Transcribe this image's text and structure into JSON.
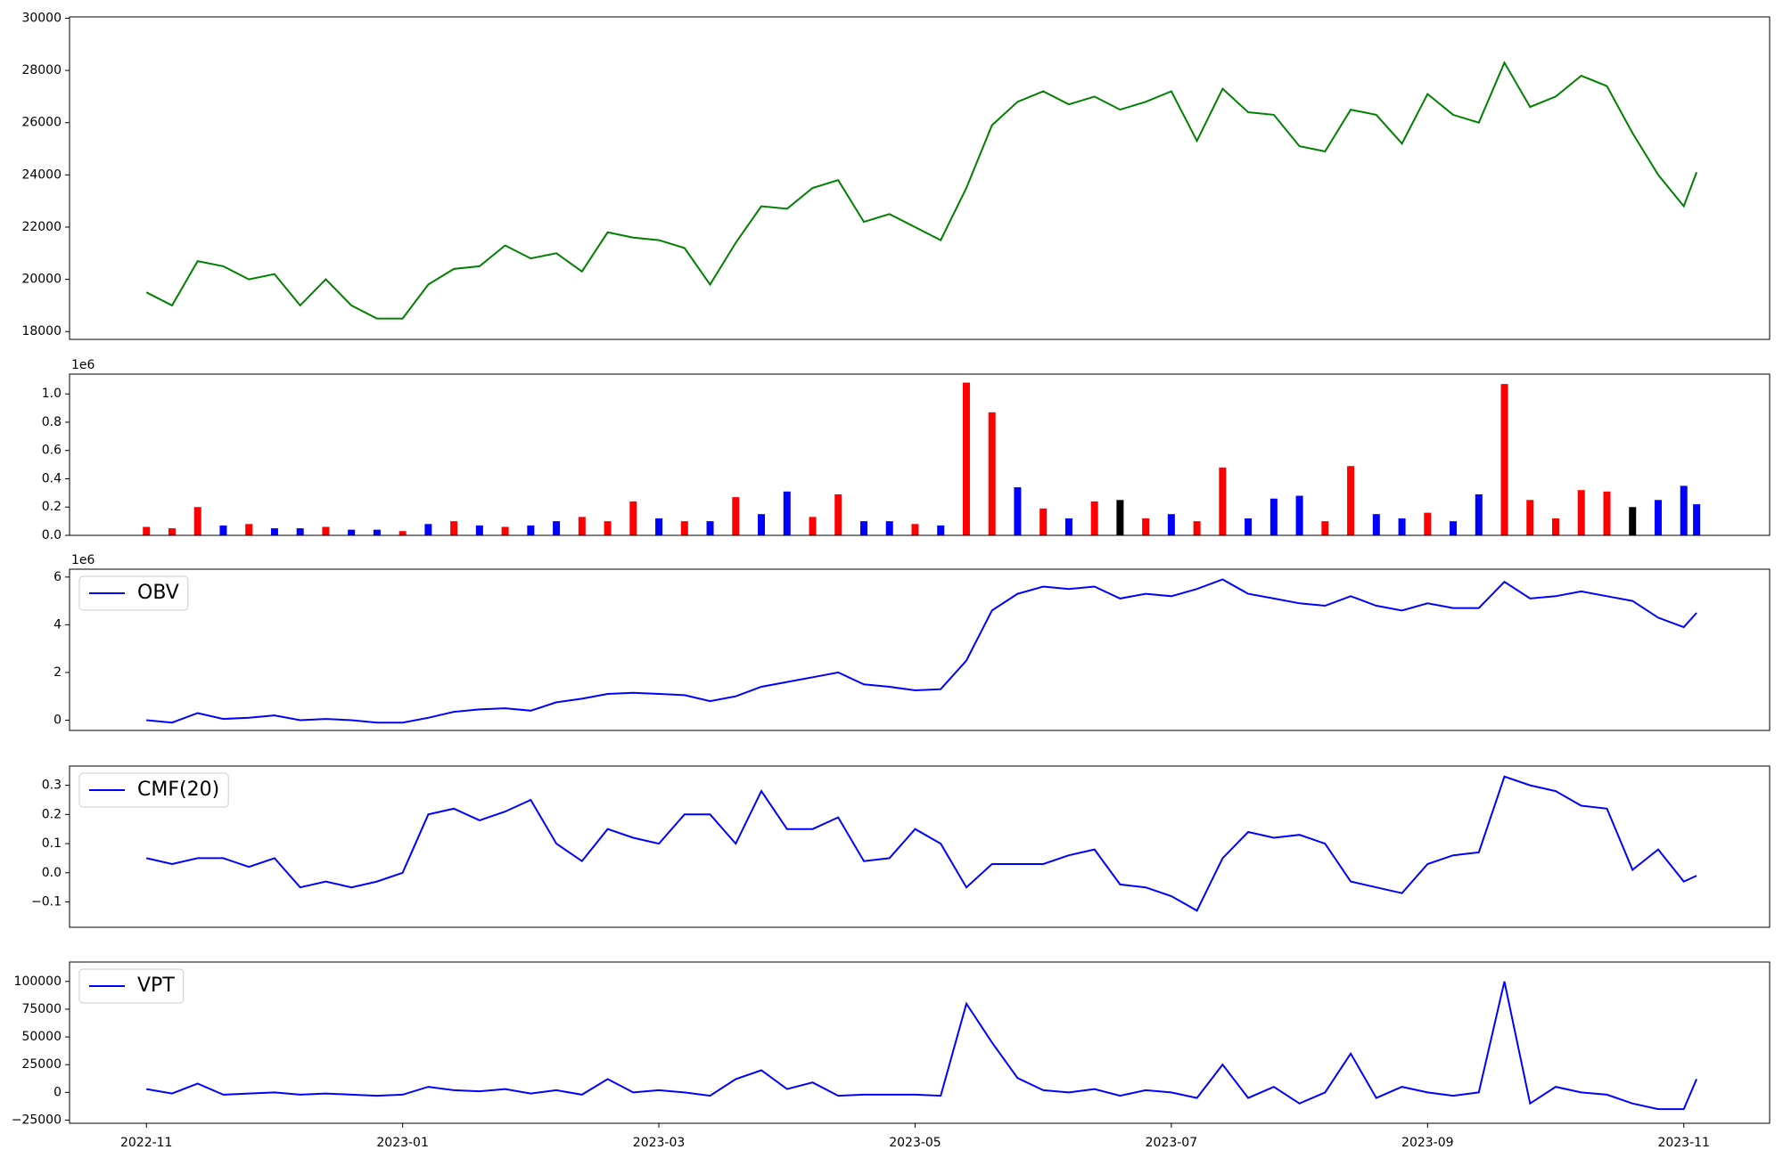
{
  "chart_data": [
    {
      "type": "line",
      "x": [
        0,
        0.2,
        0.4,
        0.6,
        0.8,
        1.0,
        1.2,
        1.4,
        1.6,
        1.8,
        2.0,
        2.2,
        2.4,
        2.6,
        2.8,
        3.0,
        3.2,
        3.4,
        3.6,
        3.8,
        4.0,
        4.2,
        4.4,
        4.6,
        4.8,
        5.0,
        5.2,
        5.4,
        5.6,
        5.8,
        6.0,
        6.2,
        6.4,
        6.6,
        6.8,
        7.0,
        7.2,
        7.4,
        7.6,
        7.8,
        8.0,
        8.2,
        8.4,
        8.6,
        8.8,
        9.0,
        9.2,
        9.4,
        9.6,
        9.8,
        10.0,
        10.2,
        10.4,
        10.6,
        10.8,
        11.0,
        11.2,
        11.4,
        11.6,
        11.8,
        12.0,
        12.1
      ],
      "series": [
        {
          "color": "green",
          "values": [
            19500,
            19000,
            20700,
            20500,
            20000,
            20200,
            19000,
            20000,
            19000,
            18500,
            18500,
            19800,
            20400,
            20500,
            21300,
            20800,
            21000,
            20300,
            21800,
            21600,
            21500,
            21200,
            19800,
            21400,
            22800,
            22700,
            23500,
            23800,
            22200,
            22500,
            22000,
            21500,
            23500,
            25900,
            26800,
            27200,
            26700,
            27000,
            26500,
            26800,
            27200,
            25300,
            27300,
            26400,
            26300,
            25100,
            24900,
            26500,
            26300,
            25200,
            27100,
            26300,
            26000,
            28300,
            26600,
            27000,
            27800,
            27400,
            25600,
            24000,
            22800,
            24100
          ]
        }
      ],
      "xlim": [
        -0.6,
        12.67
      ],
      "ylim": [
        17700,
        30050
      ],
      "yticks": [
        18000,
        20000,
        22000,
        24000,
        26000,
        28000,
        30000
      ]
    },
    {
      "type": "bar",
      "y_offset_label": "1e6",
      "x": [
        0,
        0.2,
        0.4,
        0.6,
        0.8,
        1.0,
        1.2,
        1.4,
        1.6,
        1.8,
        2.0,
        2.2,
        2.4,
        2.6,
        2.8,
        3.0,
        3.2,
        3.4,
        3.6,
        3.8,
        4.0,
        4.2,
        4.4,
        4.6,
        4.8,
        5.0,
        5.2,
        5.4,
        5.6,
        5.8,
        6.0,
        6.2,
        6.4,
        6.6,
        6.8,
        7.0,
        7.2,
        7.4,
        7.6,
        7.8,
        8.0,
        8.2,
        8.4,
        8.6,
        8.8,
        9.0,
        9.2,
        9.4,
        9.6,
        9.8,
        10.0,
        10.2,
        10.4,
        10.6,
        10.8,
        11.0,
        11.2,
        11.4,
        11.6,
        11.8,
        12.0,
        12.1
      ],
      "values": [
        0.06,
        0.05,
        0.2,
        0.07,
        0.08,
        0.05,
        0.05,
        0.06,
        0.04,
        0.04,
        0.03,
        0.08,
        0.1,
        0.07,
        0.06,
        0.07,
        0.1,
        0.13,
        0.1,
        0.24,
        0.12,
        0.1,
        0.1,
        0.27,
        0.15,
        0.31,
        0.13,
        0.29,
        0.1,
        0.1,
        0.08,
        0.07,
        1.08,
        0.87,
        0.34,
        0.19,
        0.12,
        0.24,
        0.25,
        0.12,
        0.15,
        0.1,
        0.48,
        0.12,
        0.26,
        0.28,
        0.1,
        0.49,
        0.15,
        0.12,
        0.16,
        0.1,
        0.29,
        1.07,
        0.25,
        0.12,
        0.32,
        0.31,
        0.2,
        0.25,
        0.35,
        0.22
      ],
      "colors": [
        "red",
        "red",
        "red",
        "blue",
        "red",
        "blue",
        "blue",
        "red",
        "blue",
        "blue",
        "red",
        "blue",
        "red",
        "blue",
        "red",
        "blue",
        "blue",
        "red",
        "red",
        "red",
        "blue",
        "red",
        "blue",
        "red",
        "blue",
        "blue",
        "red",
        "red",
        "blue",
        "blue",
        "red",
        "blue",
        "red",
        "red",
        "blue",
        "red",
        "blue",
        "red",
        "black",
        "red",
        "blue",
        "red",
        "red",
        "blue",
        "blue",
        "blue",
        "red",
        "red",
        "blue",
        "blue",
        "red",
        "blue",
        "blue",
        "red",
        "red",
        "red",
        "red",
        "red",
        "black",
        "blue",
        "blue",
        "blue"
      ],
      "xlim": [
        -0.6,
        12.67
      ],
      "ylim": [
        0,
        1.14
      ],
      "yticks": [
        {
          "value": 0,
          "label": "0.0"
        },
        0.2,
        0.4,
        0.6,
        0.8,
        {
          "value": 1,
          "label": "1.0"
        }
      ]
    },
    {
      "type": "line",
      "y_offset_label": "1e6",
      "legend": "upper left",
      "x": [
        0,
        0.2,
        0.4,
        0.6,
        0.8,
        1.0,
        1.2,
        1.4,
        1.6,
        1.8,
        2.0,
        2.2,
        2.4,
        2.6,
        2.8,
        3.0,
        3.2,
        3.4,
        3.6,
        3.8,
        4.0,
        4.2,
        4.4,
        4.6,
        4.8,
        5.0,
        5.2,
        5.4,
        5.6,
        5.8,
        6.0,
        6.2,
        6.4,
        6.6,
        6.8,
        7.0,
        7.2,
        7.4,
        7.6,
        7.8,
        8.0,
        8.2,
        8.4,
        8.6,
        8.8,
        9.0,
        9.2,
        9.4,
        9.6,
        9.8,
        10.0,
        10.2,
        10.4,
        10.6,
        10.8,
        11.0,
        11.2,
        11.4,
        11.6,
        11.8,
        12.0,
        12.1
      ],
      "series": [
        {
          "name": "OBV",
          "color": "blue",
          "values": [
            0,
            -0.1,
            0.3,
            0.05,
            0.1,
            0.2,
            0,
            0.05,
            0,
            -0.1,
            -0.1,
            0.1,
            0.35,
            0.45,
            0.5,
            0.4,
            0.75,
            0.9,
            1.1,
            1.15,
            1.1,
            1.05,
            0.8,
            1.0,
            1.4,
            1.6,
            1.8,
            2.0,
            1.5,
            1.4,
            1.25,
            1.3,
            2.5,
            4.6,
            5.3,
            5.6,
            5.5,
            5.6,
            5.1,
            5.3,
            5.2,
            5.5,
            5.9,
            5.3,
            5.1,
            4.9,
            4.8,
            5.2,
            4.8,
            4.6,
            4.9,
            4.7,
            4.7,
            5.8,
            5.1,
            5.2,
            5.4,
            5.2,
            5.0,
            4.3,
            3.9,
            4.5
          ]
        }
      ],
      "xlim": [
        -0.6,
        12.67
      ],
      "ylim": [
        -0.43,
        6.33
      ],
      "yticks": [
        0,
        2,
        4,
        6
      ]
    },
    {
      "type": "line",
      "legend": "upper left",
      "x": [
        0,
        0.2,
        0.4,
        0.6,
        0.8,
        1.0,
        1.2,
        1.4,
        1.6,
        1.8,
        2.0,
        2.2,
        2.4,
        2.6,
        2.8,
        3.0,
        3.2,
        3.4,
        3.6,
        3.8,
        4.0,
        4.2,
        4.4,
        4.6,
        4.8,
        5.0,
        5.2,
        5.4,
        5.6,
        5.8,
        6.0,
        6.2,
        6.4,
        6.6,
        6.8,
        7.0,
        7.2,
        7.4,
        7.6,
        7.8,
        8.0,
        8.2,
        8.4,
        8.6,
        8.8,
        9.0,
        9.2,
        9.4,
        9.6,
        9.8,
        10.0,
        10.2,
        10.4,
        10.6,
        10.8,
        11.0,
        11.2,
        11.4,
        11.6,
        11.8,
        12.0,
        12.1
      ],
      "series": [
        {
          "name": "CMF(20)",
          "color": "blue",
          "values": [
            0.05,
            0.03,
            0.05,
            0.05,
            0.02,
            0.05,
            -0.05,
            -0.03,
            -0.05,
            -0.03,
            0,
            0.2,
            0.22,
            0.18,
            0.21,
            0.25,
            0.1,
            0.04,
            0.15,
            0.12,
            0.1,
            0.2,
            0.2,
            0.1,
            0.28,
            0.15,
            0.15,
            0.19,
            0.04,
            0.05,
            0.15,
            0.1,
            -0.05,
            0.03,
            0.03,
            0.03,
            0.06,
            0.08,
            -0.04,
            -0.05,
            -0.08,
            -0.13,
            0.05,
            0.14,
            0.12,
            0.13,
            0.1,
            -0.03,
            -0.05,
            -0.07,
            0.03,
            0.06,
            0.07,
            0.33,
            0.3,
            0.28,
            0.23,
            0.22,
            0.01,
            0.08,
            -0.03,
            -0.01
          ]
        }
      ],
      "xlim": [
        -0.6,
        12.67
      ],
      "ylim": [
        -0.187,
        0.366
      ],
      "yticks": [
        {
          "value": -0.1,
          "label": "−0.1"
        },
        {
          "value": 0,
          "label": "0.0"
        },
        0.1,
        0.2,
        0.3
      ]
    },
    {
      "type": "line",
      "legend": "upper left",
      "x": [
        0,
        0.2,
        0.4,
        0.6,
        0.8,
        1.0,
        1.2,
        1.4,
        1.6,
        1.8,
        2.0,
        2.2,
        2.4,
        2.6,
        2.8,
        3.0,
        3.2,
        3.4,
        3.6,
        3.8,
        4.0,
        4.2,
        4.4,
        4.6,
        4.8,
        5.0,
        5.2,
        5.4,
        5.6,
        5.8,
        6.0,
        6.2,
        6.4,
        6.6,
        6.8,
        7.0,
        7.2,
        7.4,
        7.6,
        7.8,
        8.0,
        8.2,
        8.4,
        8.6,
        8.8,
        9.0,
        9.2,
        9.4,
        9.6,
        9.8,
        10.0,
        10.2,
        10.4,
        10.6,
        10.8,
        11.0,
        11.2,
        11.4,
        11.6,
        11.8,
        12.0,
        12.1
      ],
      "series": [
        {
          "name": "VPT",
          "color": "blue",
          "values": [
            3000,
            -1000,
            8000,
            -2000,
            -1000,
            0,
            -2000,
            -1000,
            -2000,
            -3000,
            -2000,
            5000,
            2000,
            1000,
            3000,
            -1000,
            2000,
            -2000,
            12000,
            0,
            2000,
            0,
            -3000,
            12000,
            20000,
            3000,
            9000,
            -3000,
            -2000,
            -2000,
            -2000,
            -3000,
            80000,
            45000,
            13000,
            2000,
            0,
            3000,
            -3000,
            2000,
            0,
            -5000,
            25000,
            -5000,
            5000,
            -10000,
            0,
            35000,
            -5000,
            5000,
            0,
            -3000,
            0,
            100000,
            -10000,
            5000,
            0,
            -2000,
            -10000,
            -15000,
            -15000,
            12000
          ]
        }
      ],
      "xlim": [
        -0.6,
        12.67
      ],
      "ylim": [
        -27800,
        117500
      ],
      "yticks": [
        {
          "value": -25000,
          "label": "−25000"
        },
        0,
        25000,
        50000,
        75000,
        100000
      ],
      "xticks": [
        {
          "value": 0,
          "label": "2022-11"
        },
        {
          "value": 2,
          "label": "2023-01"
        },
        {
          "value": 4,
          "label": "2023-03"
        },
        {
          "value": 6,
          "label": "2023-05"
        },
        {
          "value": 8,
          "label": "2023-07"
        },
        {
          "value": 10,
          "label": "2023-09"
        },
        {
          "value": 12,
          "label": "2023-11"
        }
      ]
    }
  ]
}
